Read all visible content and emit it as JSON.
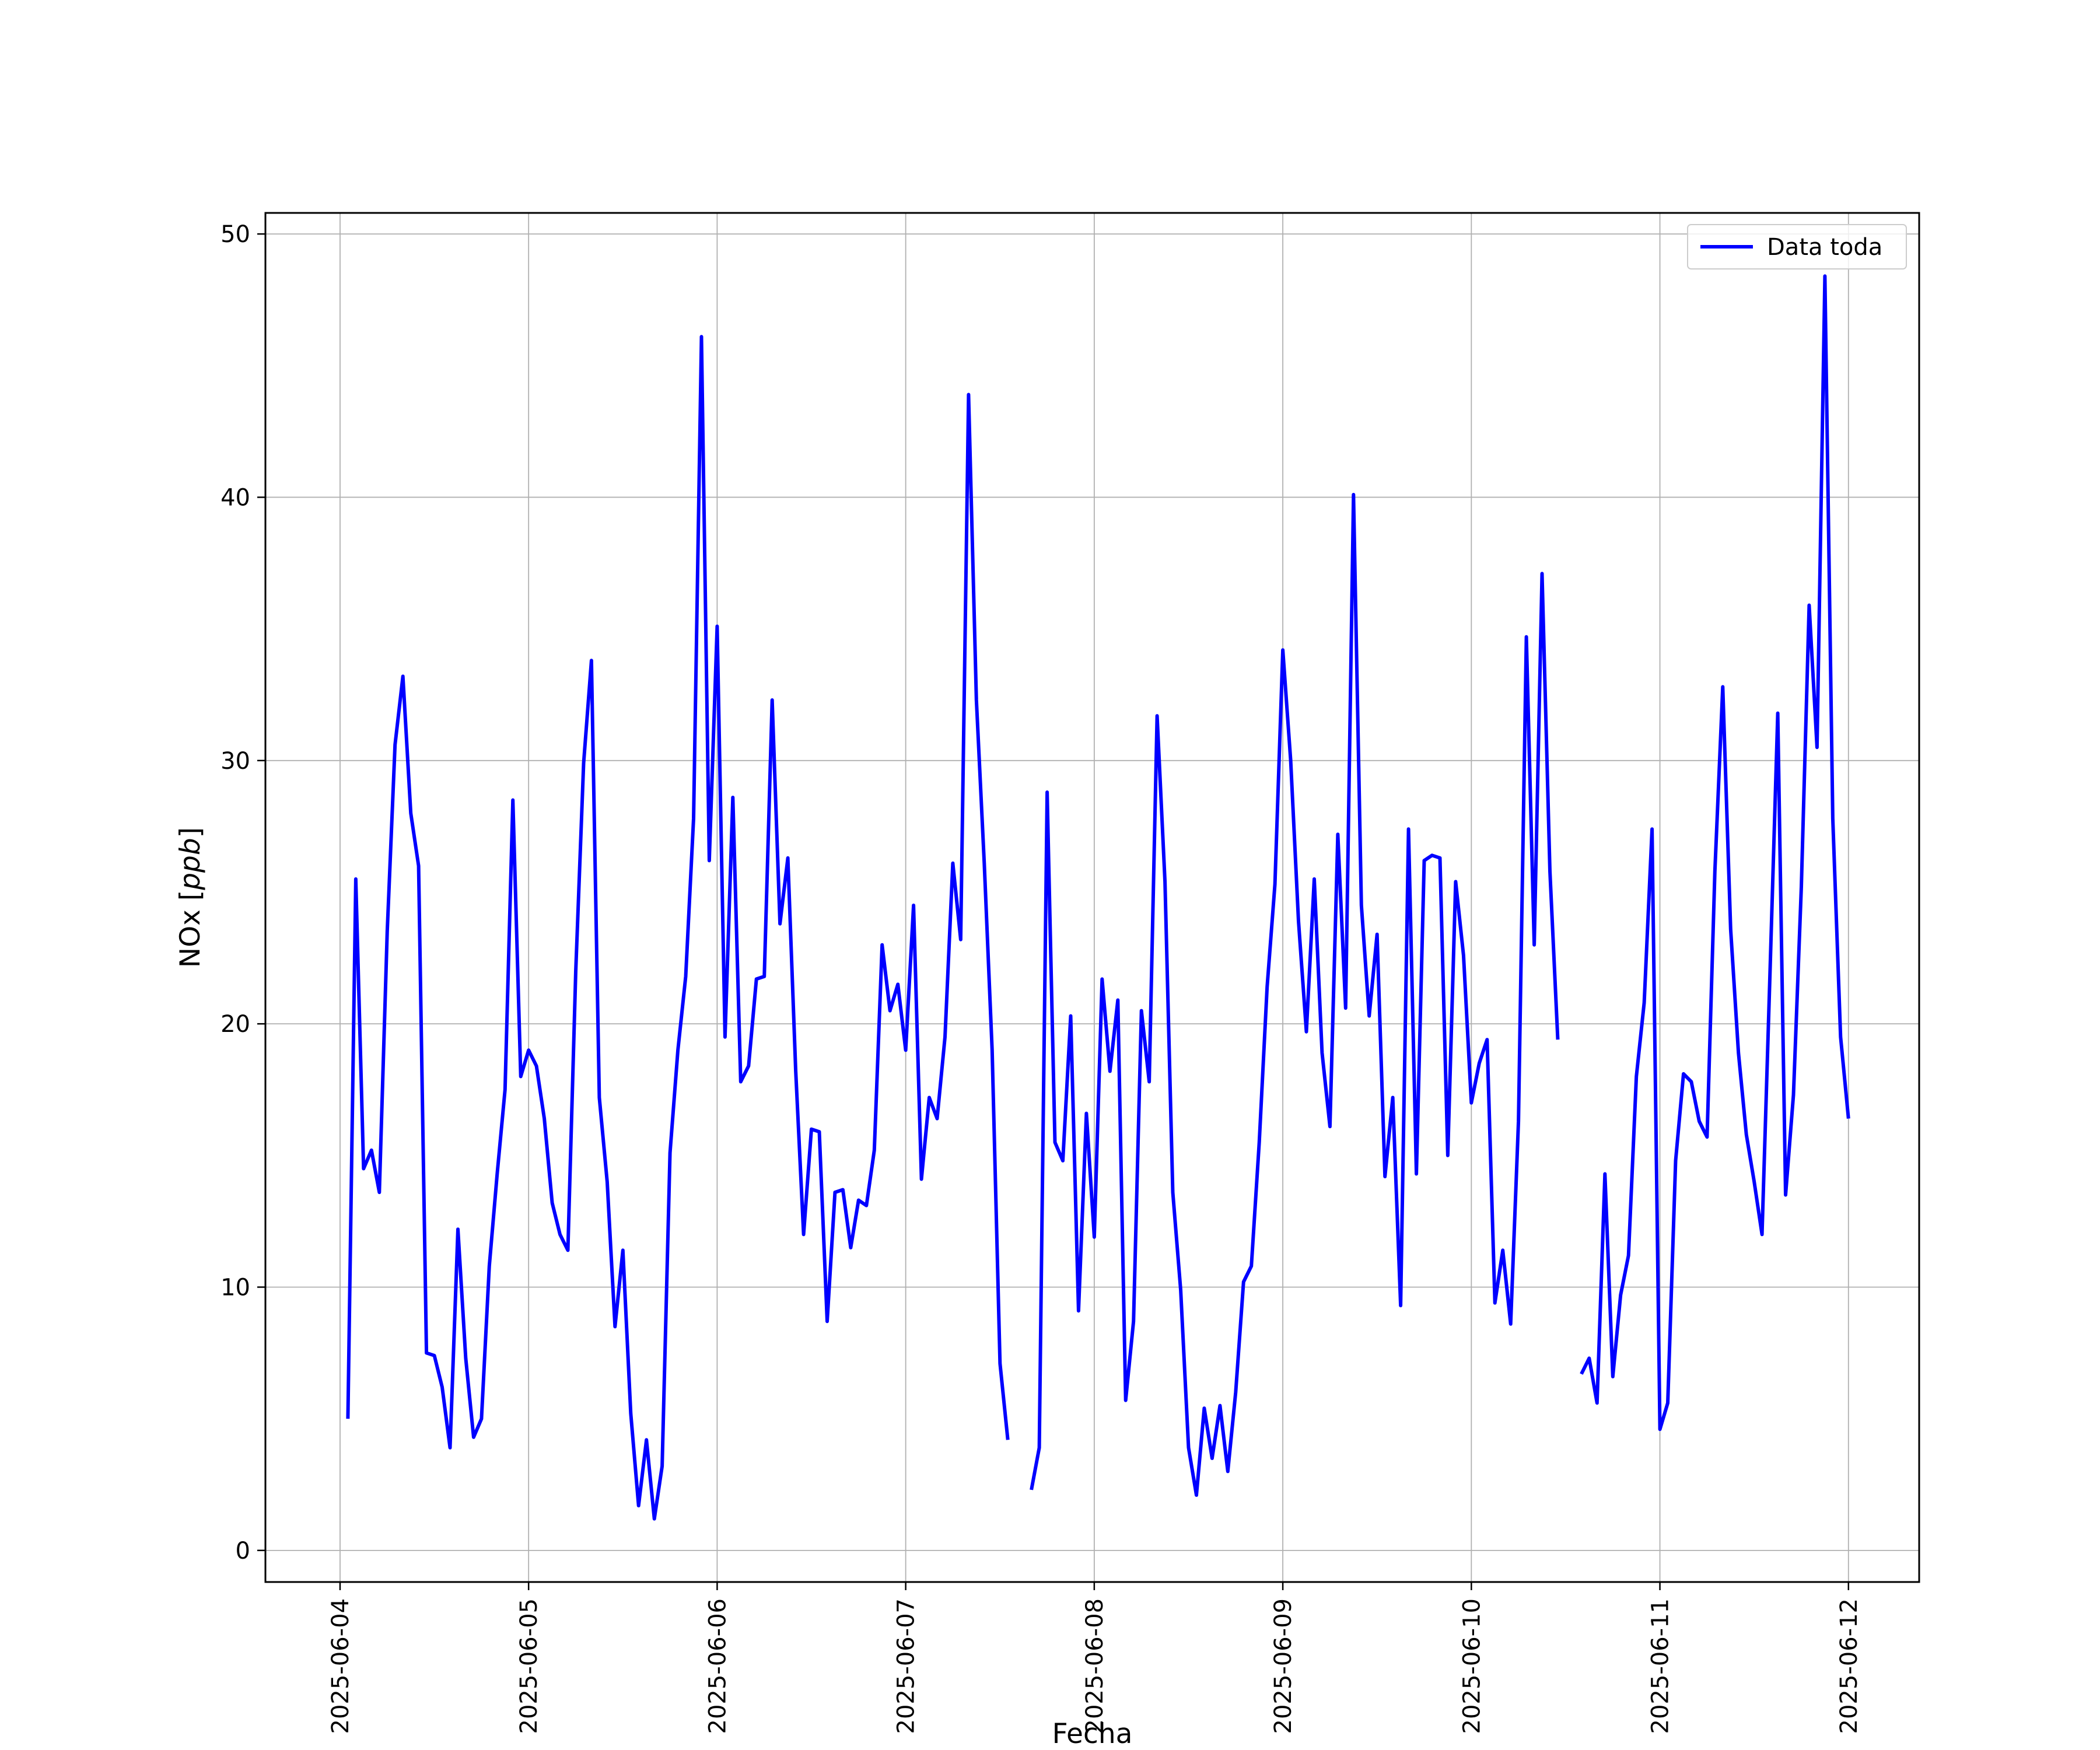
{
  "chart_data": {
    "type": "line",
    "title": "",
    "xlabel": "Fecha",
    "ylabel": "NOx [ppb]",
    "ylabel_parts": {
      "prefix": "NOx ",
      "unit": "ppb"
    },
    "xlim": [
      "2025-06-03T14:30",
      "2025-06-12T09:00"
    ],
    "ylim": [
      -1.2,
      50.8
    ],
    "x_ticks": [
      "2025-06-04",
      "2025-06-05",
      "2025-06-06",
      "2025-06-07",
      "2025-06-08",
      "2025-06-09",
      "2025-06-10",
      "2025-06-11",
      "2025-06-12"
    ],
    "y_ticks": [
      0,
      10,
      20,
      30,
      40,
      50
    ],
    "grid": true,
    "legend_position": "top-right",
    "series": [
      {
        "name": "Data toda",
        "color": "#0000ff",
        "points": [
          [
            "2025-06-04T01:00",
            5.0
          ],
          [
            "2025-06-04T02:00",
            25.5
          ],
          [
            "2025-06-04T03:00",
            14.5
          ],
          [
            "2025-06-04T04:00",
            15.2
          ],
          [
            "2025-06-04T05:00",
            13.6
          ],
          [
            "2025-06-04T06:00",
            23.5
          ],
          [
            "2025-06-04T07:00",
            30.6
          ],
          [
            "2025-06-04T08:00",
            33.2
          ],
          [
            "2025-06-04T09:00",
            28.0
          ],
          [
            "2025-06-04T10:00",
            26.0
          ],
          [
            "2025-06-04T11:00",
            7.5
          ],
          [
            "2025-06-04T12:00",
            7.4
          ],
          [
            "2025-06-04T13:00",
            6.2
          ],
          [
            "2025-06-04T14:00",
            3.9
          ],
          [
            "2025-06-04T15:00",
            12.2
          ],
          [
            "2025-06-04T16:00",
            7.3
          ],
          [
            "2025-06-04T17:00",
            4.3
          ],
          [
            "2025-06-04T18:00",
            5.0
          ],
          [
            "2025-06-04T19:00",
            10.8
          ],
          [
            "2025-06-04T20:00",
            14.3
          ],
          [
            "2025-06-04T21:00",
            17.5
          ],
          [
            "2025-06-04T22:00",
            28.5
          ],
          [
            "2025-06-04T23:00",
            18.0
          ],
          [
            "2025-06-05T00:00",
            19.0
          ],
          [
            "2025-06-05T01:00",
            18.4
          ],
          [
            "2025-06-05T02:00",
            16.4
          ],
          [
            "2025-06-05T03:00",
            13.2
          ],
          [
            "2025-06-05T04:00",
            12.0
          ],
          [
            "2025-06-05T05:00",
            11.4
          ],
          [
            "2025-06-05T06:00",
            22.0
          ],
          [
            "2025-06-05T07:00",
            29.9
          ],
          [
            "2025-06-05T08:00",
            33.8
          ],
          [
            "2025-06-05T09:00",
            17.2
          ],
          [
            "2025-06-05T10:00",
            14.0
          ],
          [
            "2025-06-05T11:00",
            8.5
          ],
          [
            "2025-06-05T12:00",
            11.4
          ],
          [
            "2025-06-05T13:00",
            5.2
          ],
          [
            "2025-06-05T14:00",
            1.7
          ],
          [
            "2025-06-05T15:00",
            4.2
          ],
          [
            "2025-06-05T16:00",
            1.2
          ],
          [
            "2025-06-05T17:00",
            3.2
          ],
          [
            "2025-06-05T18:00",
            15.1
          ],
          [
            "2025-06-05T19:00",
            19.0
          ],
          [
            "2025-06-05T20:00",
            21.8
          ],
          [
            "2025-06-05T21:00",
            27.8
          ],
          [
            "2025-06-05T22:00",
            46.1
          ],
          [
            "2025-06-05T23:00",
            26.2
          ],
          [
            "2025-06-06T00:00",
            35.1
          ],
          [
            "2025-06-06T01:00",
            19.5
          ],
          [
            "2025-06-06T02:00",
            28.6
          ],
          [
            "2025-06-06T03:00",
            17.8
          ],
          [
            "2025-06-06T04:00",
            18.4
          ],
          [
            "2025-06-06T05:00",
            21.7
          ],
          [
            "2025-06-06T06:00",
            21.8
          ],
          [
            "2025-06-06T07:00",
            32.3
          ],
          [
            "2025-06-06T08:00",
            23.8
          ],
          [
            "2025-06-06T09:00",
            26.3
          ],
          [
            "2025-06-06T10:00",
            18.2
          ],
          [
            "2025-06-06T11:00",
            12.0
          ],
          [
            "2025-06-06T12:00",
            16.0
          ],
          [
            "2025-06-06T13:00",
            15.9
          ],
          [
            "2025-06-06T14:00",
            8.7
          ],
          [
            "2025-06-06T15:00",
            13.6
          ],
          [
            "2025-06-06T16:00",
            13.7
          ],
          [
            "2025-06-06T17:00",
            11.5
          ],
          [
            "2025-06-06T18:00",
            13.3
          ],
          [
            "2025-06-06T19:00",
            13.1
          ],
          [
            "2025-06-06T20:00",
            15.2
          ],
          [
            "2025-06-06T21:00",
            23.0
          ],
          [
            "2025-06-06T22:00",
            20.5
          ],
          [
            "2025-06-06T23:00",
            21.5
          ],
          [
            "2025-06-07T00:00",
            19.0
          ],
          [
            "2025-06-07T01:00",
            24.5
          ],
          [
            "2025-06-07T02:00",
            14.1
          ],
          [
            "2025-06-07T03:00",
            17.2
          ],
          [
            "2025-06-07T04:00",
            16.4
          ],
          [
            "2025-06-07T05:00",
            19.5
          ],
          [
            "2025-06-07T06:00",
            26.1
          ],
          [
            "2025-06-07T07:00",
            23.2
          ],
          [
            "2025-06-07T08:00",
            43.9
          ],
          [
            "2025-06-07T09:00",
            32.3
          ],
          [
            "2025-06-07T10:00",
            26.1
          ],
          [
            "2025-06-07T11:00",
            19.0
          ],
          [
            "2025-06-07T12:00",
            7.1
          ],
          [
            "2025-06-07T13:00",
            4.2
          ],
          [
            "2025-06-07T14:00",
            null
          ],
          [
            "2025-06-07T15:00",
            null
          ],
          [
            "2025-06-07T16:00",
            2.3
          ],
          [
            "2025-06-07T17:00",
            3.9
          ],
          [
            "2025-06-07T18:00",
            28.8
          ],
          [
            "2025-06-07T19:00",
            15.5
          ],
          [
            "2025-06-07T20:00",
            14.8
          ],
          [
            "2025-06-07T21:00",
            20.3
          ],
          [
            "2025-06-07T22:00",
            9.1
          ],
          [
            "2025-06-07T23:00",
            16.6
          ],
          [
            "2025-06-08T00:00",
            11.9
          ],
          [
            "2025-06-08T01:00",
            21.7
          ],
          [
            "2025-06-08T02:00",
            18.2
          ],
          [
            "2025-06-08T03:00",
            20.9
          ],
          [
            "2025-06-08T04:00",
            5.7
          ],
          [
            "2025-06-08T05:00",
            8.7
          ],
          [
            "2025-06-08T06:00",
            20.5
          ],
          [
            "2025-06-08T07:00",
            17.8
          ],
          [
            "2025-06-08T08:00",
            31.7
          ],
          [
            "2025-06-08T09:00",
            25.4
          ],
          [
            "2025-06-08T10:00",
            13.6
          ],
          [
            "2025-06-08T11:00",
            9.9
          ],
          [
            "2025-06-08T12:00",
            3.9
          ],
          [
            "2025-06-08T13:00",
            2.1
          ],
          [
            "2025-06-08T14:00",
            5.4
          ],
          [
            "2025-06-08T15:00",
            3.5
          ],
          [
            "2025-06-08T16:00",
            5.5
          ],
          [
            "2025-06-08T17:00",
            3.0
          ],
          [
            "2025-06-08T18:00",
            6.0
          ],
          [
            "2025-06-08T19:00",
            10.2
          ],
          [
            "2025-06-08T20:00",
            10.8
          ],
          [
            "2025-06-08T21:00",
            15.5
          ],
          [
            "2025-06-08T22:00",
            21.4
          ],
          [
            "2025-06-08T23:00",
            25.3
          ],
          [
            "2025-06-09T00:00",
            34.2
          ],
          [
            "2025-06-09T01:00",
            30.0
          ],
          [
            "2025-06-09T02:00",
            23.9
          ],
          [
            "2025-06-09T03:00",
            19.7
          ],
          [
            "2025-06-09T04:00",
            25.5
          ],
          [
            "2025-06-09T05:00",
            18.9
          ],
          [
            "2025-06-09T06:00",
            16.1
          ],
          [
            "2025-06-09T07:00",
            27.2
          ],
          [
            "2025-06-09T08:00",
            20.6
          ],
          [
            "2025-06-09T09:00",
            40.1
          ],
          [
            "2025-06-09T10:00",
            24.5
          ],
          [
            "2025-06-09T11:00",
            20.3
          ],
          [
            "2025-06-09T12:00",
            23.4
          ],
          [
            "2025-06-09T13:00",
            14.2
          ],
          [
            "2025-06-09T14:00",
            17.2
          ],
          [
            "2025-06-09T15:00",
            9.3
          ],
          [
            "2025-06-09T16:00",
            27.4
          ],
          [
            "2025-06-09T17:00",
            14.3
          ],
          [
            "2025-06-09T18:00",
            26.2
          ],
          [
            "2025-06-09T19:00",
            26.4
          ],
          [
            "2025-06-09T20:00",
            26.3
          ],
          [
            "2025-06-09T21:00",
            15.0
          ],
          [
            "2025-06-09T22:00",
            25.4
          ],
          [
            "2025-06-09T23:00",
            22.6
          ],
          [
            "2025-06-10T00:00",
            17.0
          ],
          [
            "2025-06-10T01:00",
            18.5
          ],
          [
            "2025-06-10T02:00",
            19.4
          ],
          [
            "2025-06-10T03:00",
            9.4
          ],
          [
            "2025-06-10T04:00",
            11.4
          ],
          [
            "2025-06-10T05:00",
            8.6
          ],
          [
            "2025-06-10T06:00",
            16.3
          ],
          [
            "2025-06-10T07:00",
            34.7
          ],
          [
            "2025-06-10T08:00",
            23.0
          ],
          [
            "2025-06-10T09:00",
            37.1
          ],
          [
            "2025-06-10T10:00",
            25.8
          ],
          [
            "2025-06-10T11:00",
            19.4
          ],
          [
            "2025-06-10T12:00",
            null
          ],
          [
            "2025-06-10T13:00",
            null
          ],
          [
            "2025-06-10T14:00",
            6.7
          ],
          [
            "2025-06-10T15:00",
            7.3
          ],
          [
            "2025-06-10T16:00",
            5.6
          ],
          [
            "2025-06-10T17:00",
            14.3
          ],
          [
            "2025-06-10T18:00",
            6.6
          ],
          [
            "2025-06-10T19:00",
            9.7
          ],
          [
            "2025-06-10T20:00",
            11.2
          ],
          [
            "2025-06-10T21:00",
            18.0
          ],
          [
            "2025-06-10T22:00",
            20.8
          ],
          [
            "2025-06-10T23:00",
            27.4
          ],
          [
            "2025-06-11T00:00",
            4.6
          ],
          [
            "2025-06-11T01:00",
            5.6
          ],
          [
            "2025-06-11T02:00",
            14.8
          ],
          [
            "2025-06-11T03:00",
            18.1
          ],
          [
            "2025-06-11T04:00",
            17.8
          ],
          [
            "2025-06-11T05:00",
            16.3
          ],
          [
            "2025-06-11T06:00",
            15.7
          ],
          [
            "2025-06-11T07:00",
            25.8
          ],
          [
            "2025-06-11T08:00",
            32.8
          ],
          [
            "2025-06-11T09:00",
            23.6
          ],
          [
            "2025-06-11T10:00",
            18.9
          ],
          [
            "2025-06-11T11:00",
            15.8
          ],
          [
            "2025-06-11T12:00",
            14.0
          ],
          [
            "2025-06-11T13:00",
            12.0
          ],
          [
            "2025-06-11T14:00",
            21.8
          ],
          [
            "2025-06-11T15:00",
            31.8
          ],
          [
            "2025-06-11T16:00",
            13.5
          ],
          [
            "2025-06-11T17:00",
            17.3
          ],
          [
            "2025-06-11T18:00",
            25.2
          ],
          [
            "2025-06-11T19:00",
            35.9
          ],
          [
            "2025-06-11T20:00",
            30.5
          ],
          [
            "2025-06-11T21:00",
            48.4
          ],
          [
            "2025-06-11T22:00",
            27.8
          ],
          [
            "2025-06-11T23:00",
            19.5
          ],
          [
            "2025-06-12T00:00",
            16.4
          ]
        ]
      }
    ]
  }
}
